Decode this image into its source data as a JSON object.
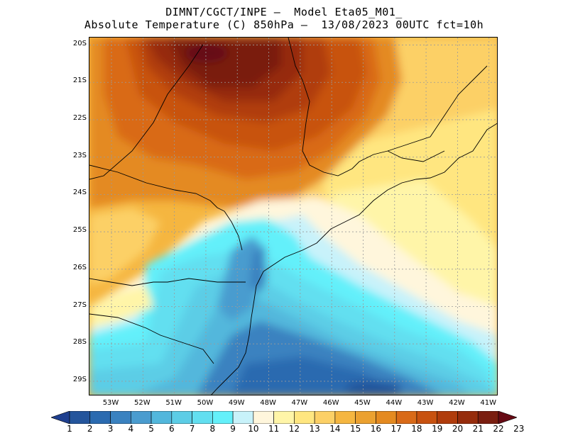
{
  "header": {
    "title_line1": "DIMNT/CGCT/INPE –  Model Eta05_M01_",
    "title_line2": "Absolute Temperature (C) 850hPa –  13/08/2023 00UTC fct=10h"
  },
  "map": {
    "lat_ticks": [
      "20S",
      "21S",
      "22S",
      "23S",
      "24S",
      "25S",
      "26S",
      "27S",
      "28S",
      "29S"
    ],
    "lon_ticks": [
      "53W",
      "52W",
      "51W",
      "50W",
      "49W",
      "48W",
      "47W",
      "46W",
      "45W",
      "44W",
      "43W",
      "42W",
      "41W"
    ],
    "lat_range": [
      -29.4,
      -19.8
    ],
    "lon_range": [
      -53.7,
      -40.7
    ],
    "variable": "Absolute Temperature (C) 850hPa"
  },
  "colorbar": {
    "labels": [
      "1",
      "2",
      "3",
      "4",
      "5",
      "6",
      "7",
      "8",
      "9",
      "10",
      "11",
      "12",
      "13",
      "14",
      "15",
      "16",
      "17",
      "18",
      "19",
      "20",
      "21",
      "22",
      "23"
    ],
    "colors": [
      "#1e3f8f",
      "#24559c",
      "#2a6ab0",
      "#3a82c0",
      "#4a9ccf",
      "#52b7dc",
      "#5ccde6",
      "#62dff0",
      "#64f0fa",
      "#c8f2fa",
      "#fff6dc",
      "#fff5a8",
      "#ffe680",
      "#fcd066",
      "#f5b640",
      "#eba130",
      "#e48a20",
      "#d96a18",
      "#c85210",
      "#b03c0c",
      "#962c0c",
      "#7a1e10",
      "#660a14"
    ]
  }
}
